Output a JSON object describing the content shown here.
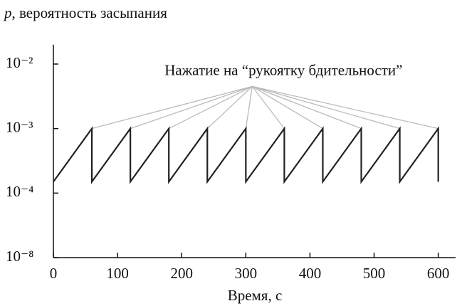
{
  "chart_data": {
    "type": "line",
    "ylabel_var": "p",
    "ylabel": ", вероятность засыпания",
    "xlabel": "Время, с",
    "annotation": {
      "text": "Нажатие на “рукоятку бдительности”",
      "x": 310,
      "y": 0.0045,
      "line_color": "#bbbbbb"
    },
    "series": [
      {
        "color": "#222222",
        "x": [
          0,
          60,
          60,
          120,
          120,
          180,
          180,
          240,
          240,
          300,
          300,
          360,
          360,
          420,
          420,
          480,
          480,
          540,
          540,
          600,
          600
        ],
        "values": [
          0.00015,
          0.001,
          0.00015,
          0.001,
          0.00015,
          0.001,
          0.00015,
          0.001,
          0.00015,
          0.001,
          0.00015,
          0.001,
          0.00015,
          0.001,
          0.00015,
          0.001,
          0.00015,
          0.001,
          0.00015,
          0.001,
          0.00015
        ]
      }
    ],
    "xlim": [
      0,
      627
    ],
    "xticks": [
      0,
      100,
      200,
      300,
      400,
      500,
      600
    ],
    "ylim": [
      1e-08,
      0.02
    ],
    "log_y": true,
    "y_axis_break": true,
    "yticks": [
      {
        "value": 1e-08,
        "label": "10⁻⁸"
      },
      {
        "value": 0.0001,
        "label": "10⁻⁴"
      },
      {
        "value": 0.001,
        "label": "10⁻³"
      },
      {
        "value": 0.01,
        "label": "10⁻²"
      }
    ]
  }
}
